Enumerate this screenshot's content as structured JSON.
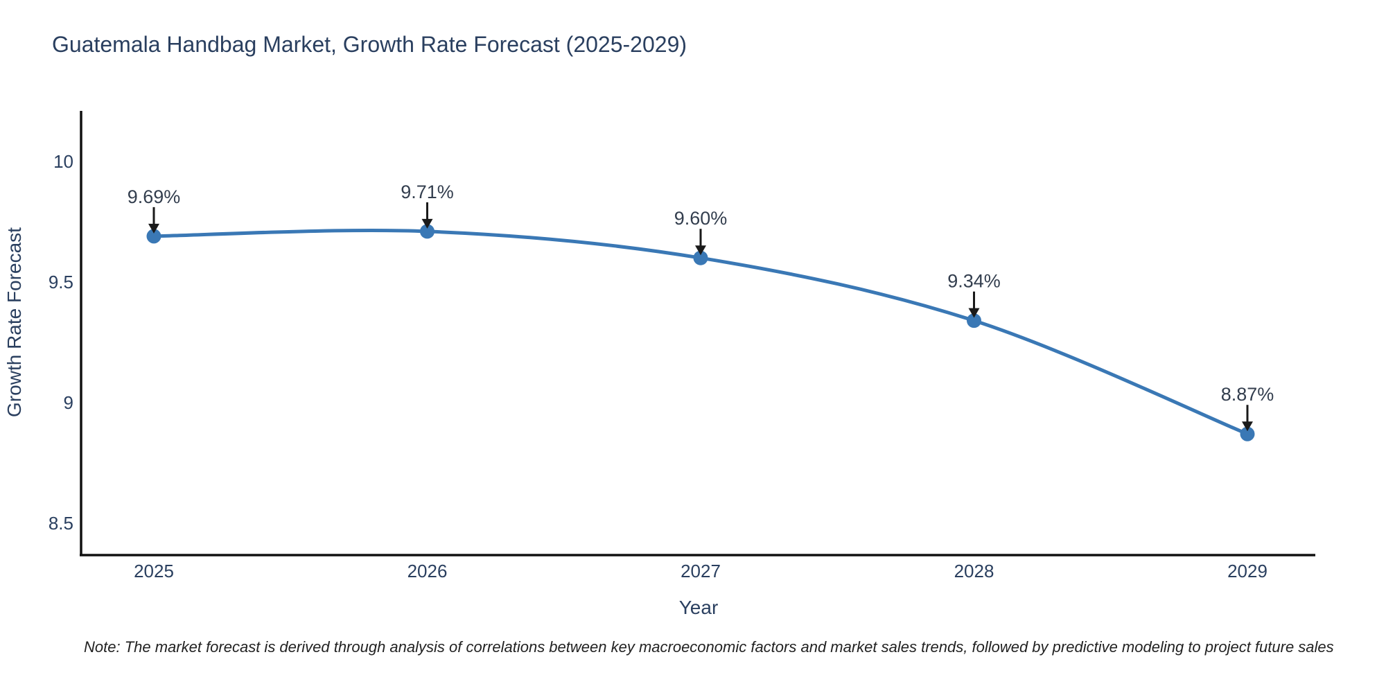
{
  "title": "Guatemala Handbag Market, Growth Rate Forecast (2025-2029)",
  "note": "Note: The market forecast is derived through analysis of correlations between key macroeconomic factors and market sales trends, followed by predictive modeling to project future sales",
  "chart_data": {
    "type": "line",
    "title": "Guatemala Handbag Market, Growth Rate Forecast (2025-2029)",
    "xlabel": "Year",
    "ylabel": "Growth Rate Forecast",
    "x": [
      2025,
      2026,
      2027,
      2028,
      2029
    ],
    "values": [
      9.69,
      9.71,
      9.6,
      9.34,
      8.87
    ],
    "point_labels": [
      "9.69%",
      "9.71%",
      "9.60%",
      "9.34%",
      "8.87%"
    ],
    "x_tick_labels": [
      "2025",
      "2026",
      "2027",
      "2028",
      "2029"
    ],
    "y_ticks": [
      {
        "value": 10,
        "label": "10"
      },
      {
        "value": 9.5,
        "label": "9.5"
      },
      {
        "value": 9,
        "label": "9"
      },
      {
        "value": 8.5,
        "label": "8.5"
      }
    ],
    "xlim": [
      2024.73,
      2029.25
    ],
    "ylim": [
      8.37,
      10.21
    ],
    "grid": false,
    "legend": false,
    "line_shape": "spline",
    "colors": {
      "line": "#3a78b5",
      "marker": "#3a78b5",
      "annotation_text": "#333e4e",
      "annotation_arrow": "#1a1a1a",
      "axis_text": "#2a3f5f",
      "axis_line": "#111111",
      "note_text": "#222222",
      "background": "#ffffff"
    }
  }
}
